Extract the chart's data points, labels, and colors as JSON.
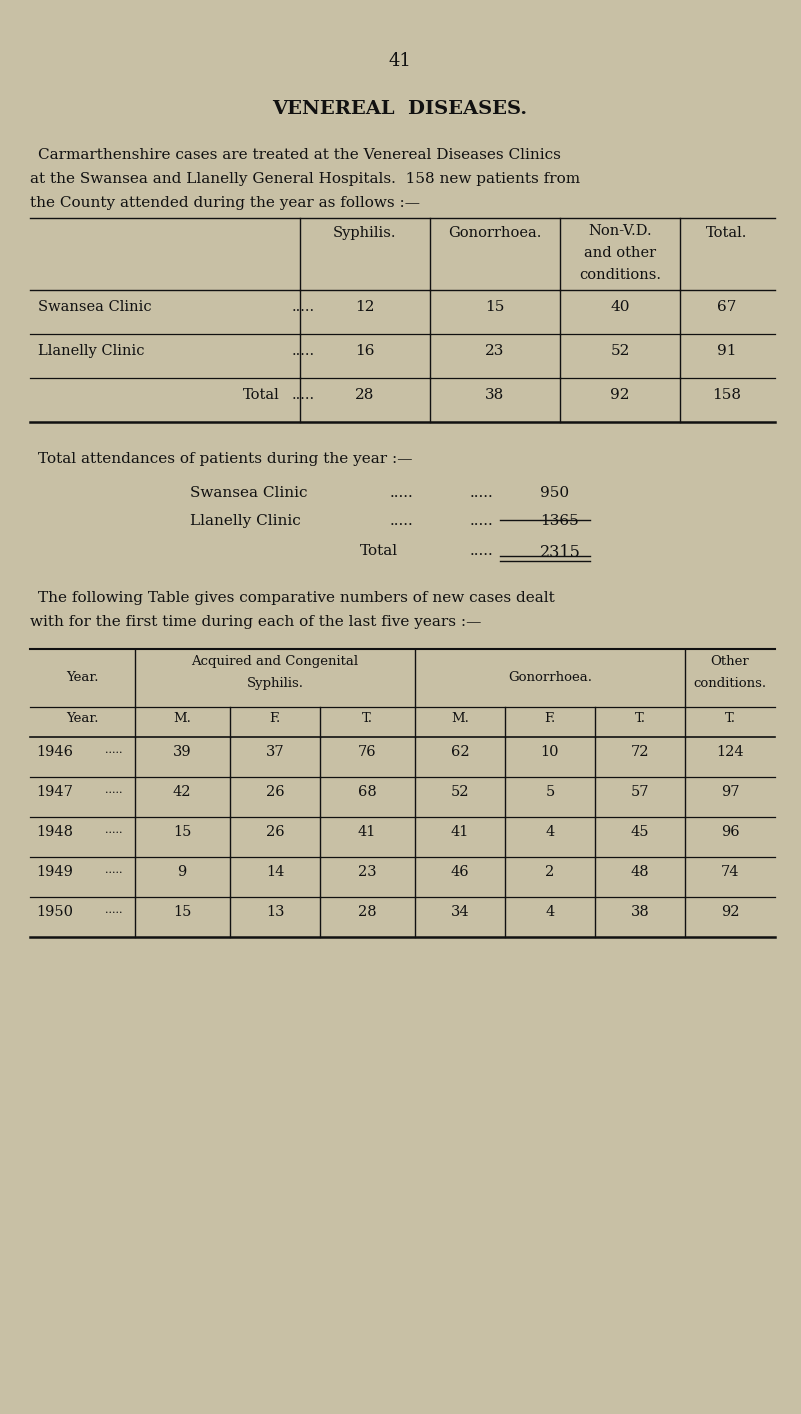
{
  "bg_color": "#c8c0a5",
  "page_number": "41",
  "title": "VENEREAL  DISEASES.",
  "intro_line1": "Carmarthenshire cases are treated at the Venereal Diseases Clinics",
  "intro_line2": "at the Swansea and Llanelly General Hospitals.  158 new patients from",
  "intro_line3": "the County attended during the year as follows :—",
  "t1_col_labels": [
    "Syphilis.",
    "Gonorrhoea.",
    "Non-V.D.\nand other\nconditions.",
    "Total."
  ],
  "t1_rows": [
    [
      "Swansea Clinic",
      ".....",
      "12",
      "15",
      "40",
      "67"
    ],
    [
      "Llanelly Clinic",
      ".....",
      "16",
      "23",
      "52",
      "91"
    ],
    [
      "Total",
      ".....",
      "28",
      "38",
      "92",
      "158"
    ]
  ],
  "att_title": "Total attendances of patients during the year :—",
  "att_swansea": "950",
  "att_llanelly": "1365",
  "att_total": "2315",
  "follow_line1": "The following Table gives comparative numbers of new cases dealt",
  "follow_line2": "with for the first time during each of the last five years :—",
  "t2_rows": [
    [
      "1946",
      "39",
      "37",
      "76",
      "62",
      "10",
      "72",
      "124"
    ],
    [
      "1947",
      "42",
      "26",
      "68",
      "52",
      "5",
      "57",
      "97"
    ],
    [
      "1948",
      "15",
      "26",
      "41",
      "41",
      "4",
      "45",
      "96"
    ],
    [
      "1949",
      "9",
      "14",
      "23",
      "46",
      "2",
      "48",
      "74"
    ],
    [
      "1950",
      "15",
      "13",
      "28",
      "34",
      "4",
      "38",
      "92"
    ]
  ]
}
